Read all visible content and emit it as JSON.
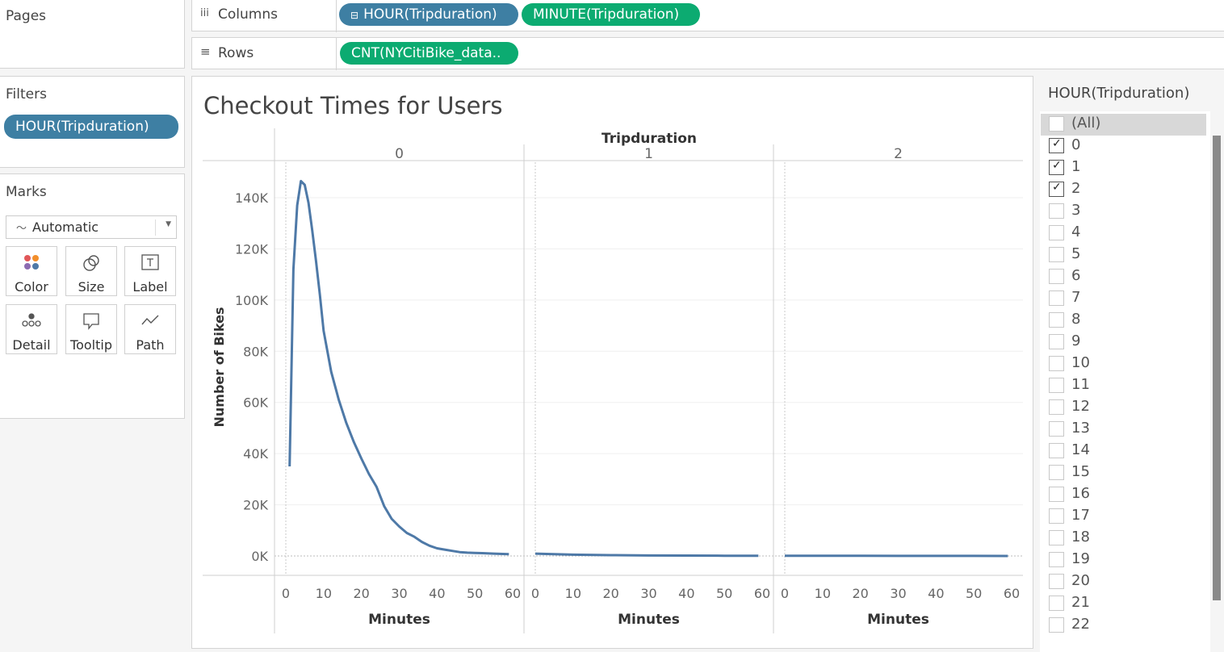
{
  "pages": {
    "title": "Pages"
  },
  "shelves": {
    "columns_label": "Columns",
    "rows_label": "Rows",
    "columns_pills": [
      "HOUR(Tripduration)",
      "MINUTE(Tripduration)"
    ],
    "rows_pills": [
      "CNT(NYCitiBike_data.."
    ]
  },
  "filters": {
    "title": "Filters",
    "pill": "HOUR(Tripduration)"
  },
  "marks": {
    "title": "Marks",
    "type_select": "Automatic",
    "cards": [
      "Color",
      "Size",
      "Label",
      "Detail",
      "Tooltip",
      "Path"
    ]
  },
  "filter_card": {
    "title": "HOUR(Tripduration)",
    "items": [
      {
        "label": "(All)",
        "checked": false
      },
      {
        "label": "0",
        "checked": true
      },
      {
        "label": "1",
        "checked": true
      },
      {
        "label": "2",
        "checked": true
      },
      {
        "label": "3",
        "checked": false
      },
      {
        "label": "4",
        "checked": false
      },
      {
        "label": "5",
        "checked": false
      },
      {
        "label": "6",
        "checked": false
      },
      {
        "label": "7",
        "checked": false
      },
      {
        "label": "8",
        "checked": false
      },
      {
        "label": "9",
        "checked": false
      },
      {
        "label": "10",
        "checked": false
      },
      {
        "label": "11",
        "checked": false
      },
      {
        "label": "12",
        "checked": false
      },
      {
        "label": "13",
        "checked": false
      },
      {
        "label": "14",
        "checked": false
      },
      {
        "label": "15",
        "checked": false
      },
      {
        "label": "16",
        "checked": false
      },
      {
        "label": "17",
        "checked": false
      },
      {
        "label": "18",
        "checked": false
      },
      {
        "label": "19",
        "checked": false
      },
      {
        "label": "20",
        "checked": false
      },
      {
        "label": "21",
        "checked": false
      },
      {
        "label": "22",
        "checked": false
      }
    ]
  },
  "chart_data": {
    "type": "line",
    "title": "Checkout Times for Users",
    "column_header": "Tripduration",
    "ylabel": "Number of Bikes",
    "xlabel": "Minutes",
    "ylim": [
      0,
      150000
    ],
    "yticks": [
      0,
      20000,
      40000,
      60000,
      80000,
      100000,
      120000,
      140000
    ],
    "ytick_labels": [
      "0K",
      "20K",
      "40K",
      "60K",
      "80K",
      "100K",
      "120K",
      "140K"
    ],
    "xlim": [
      0,
      60
    ],
    "xticks": [
      0,
      10,
      20,
      30,
      40,
      50,
      60
    ],
    "line_color": "#4e79a7",
    "panels": [
      {
        "name": "0",
        "x": [
          1,
          2,
          3,
          4,
          5,
          6,
          7,
          8,
          9,
          10,
          12,
          14,
          16,
          18,
          20,
          22,
          24,
          26,
          28,
          30,
          32,
          34,
          36,
          38,
          40,
          42,
          44,
          46,
          48,
          50,
          52,
          55,
          59
        ],
        "y": [
          35000,
          112000,
          137000,
          146500,
          145000,
          138000,
          127000,
          115000,
          102000,
          88000,
          72000,
          61000,
          52000,
          44500,
          38000,
          32000,
          27000,
          19500,
          14500,
          11500,
          9000,
          7500,
          5500,
          4000,
          3000,
          2500,
          2000,
          1500,
          1300,
          1200,
          1100,
          900,
          700
        ]
      },
      {
        "name": "1",
        "x": [
          0,
          10,
          20,
          30,
          40,
          50,
          59
        ],
        "y": [
          900,
          500,
          300,
          200,
          150,
          100,
          50
        ]
      },
      {
        "name": "2",
        "x": [
          0,
          10,
          20,
          30,
          40,
          50,
          59
        ],
        "y": [
          80,
          60,
          50,
          40,
          30,
          20,
          10
        ]
      }
    ]
  }
}
